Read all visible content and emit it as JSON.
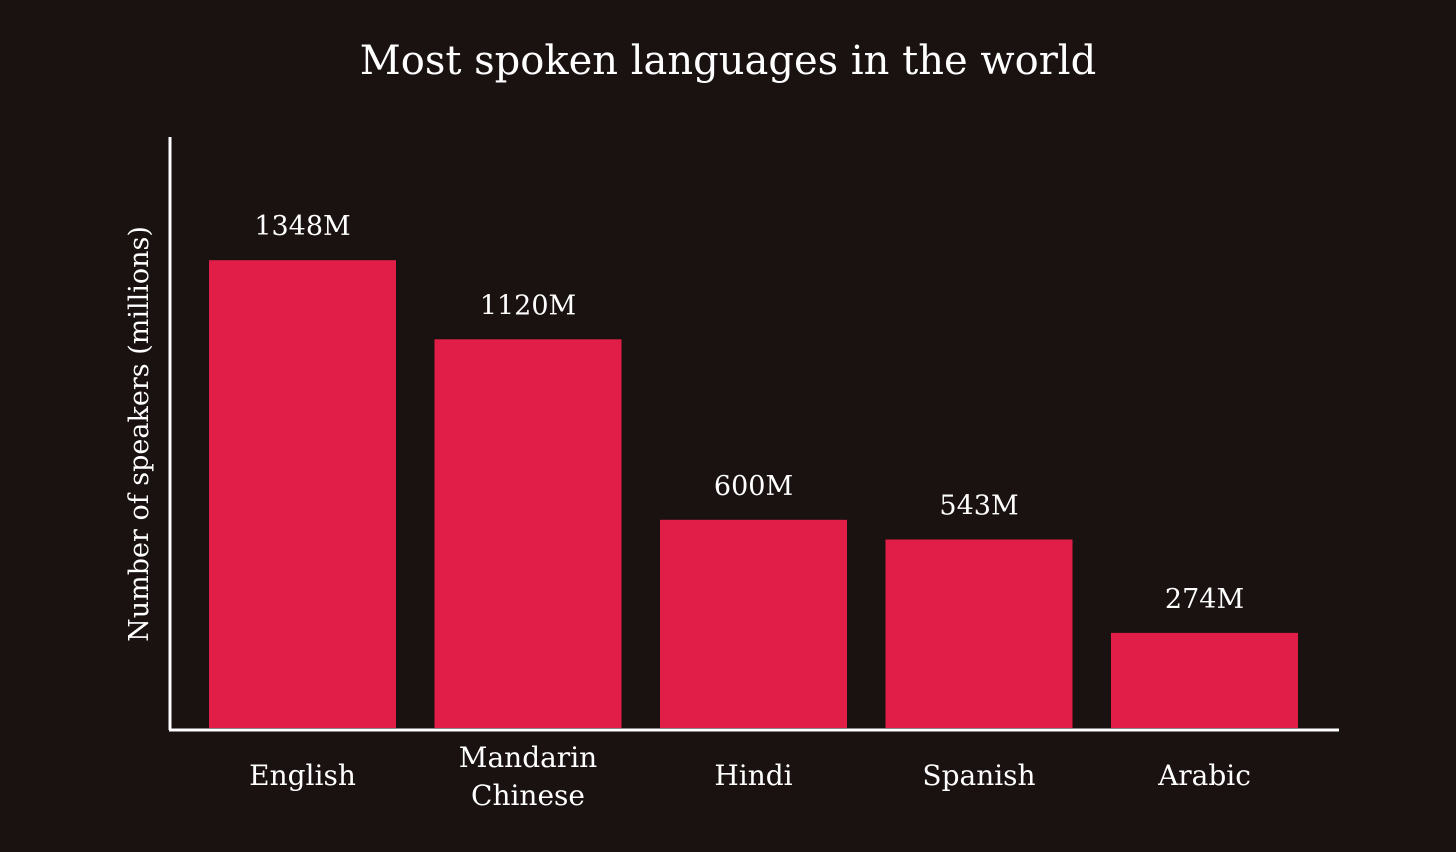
{
  "chart_data": {
    "type": "bar",
    "title": "Most spoken languages in the world",
    "xlabel": "",
    "ylabel": "Number of speakers (millions)",
    "categories": [
      [
        "English"
      ],
      [
        "Mandarin",
        "Chinese"
      ],
      [
        "Hindi"
      ],
      [
        "Spanish"
      ],
      [
        "Arabic"
      ]
    ],
    "values": [
      1348,
      1120,
      600,
      543,
      274
    ],
    "value_labels": [
      "1348M",
      "1120M",
      "600M",
      "543M",
      "274M"
    ],
    "ylim": [
      0,
      1700
    ],
    "grid": false,
    "legend": "none",
    "colors": {
      "background": "#1a1111",
      "bar": "#e01e48",
      "text": "#ffffff",
      "axis": "#ffffff"
    }
  }
}
